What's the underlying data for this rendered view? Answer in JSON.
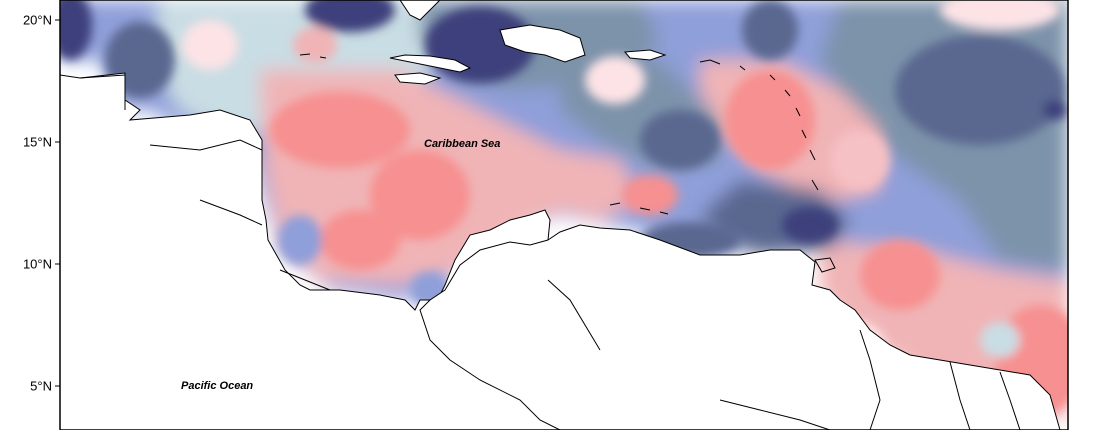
{
  "map": {
    "y_axis": {
      "ticks": [
        {
          "lat": 20,
          "label": "20°N"
        },
        {
          "lat": 15,
          "label": "15°N"
        },
        {
          "lat": 10,
          "label": "10°N"
        },
        {
          "lat": 5,
          "label": "5°N"
        }
      ]
    },
    "places": [
      {
        "id": "caribbean-sea",
        "name": "Caribbean Sea"
      },
      {
        "id": "pacific-ocean",
        "name": "Pacific Ocean"
      }
    ],
    "colors": {
      "dark_blue": "#3d3f7c",
      "slate_blue": "#5a6890",
      "steel_blue": "#7d93aa",
      "periwinkle": "#8f9fd9",
      "pale_blue": "#c9dde4",
      "pale_pink": "#fde3e6",
      "light_pink": "#f6c1c4",
      "rose": "#f0b4b6",
      "salmon": "#f79090"
    }
  }
}
